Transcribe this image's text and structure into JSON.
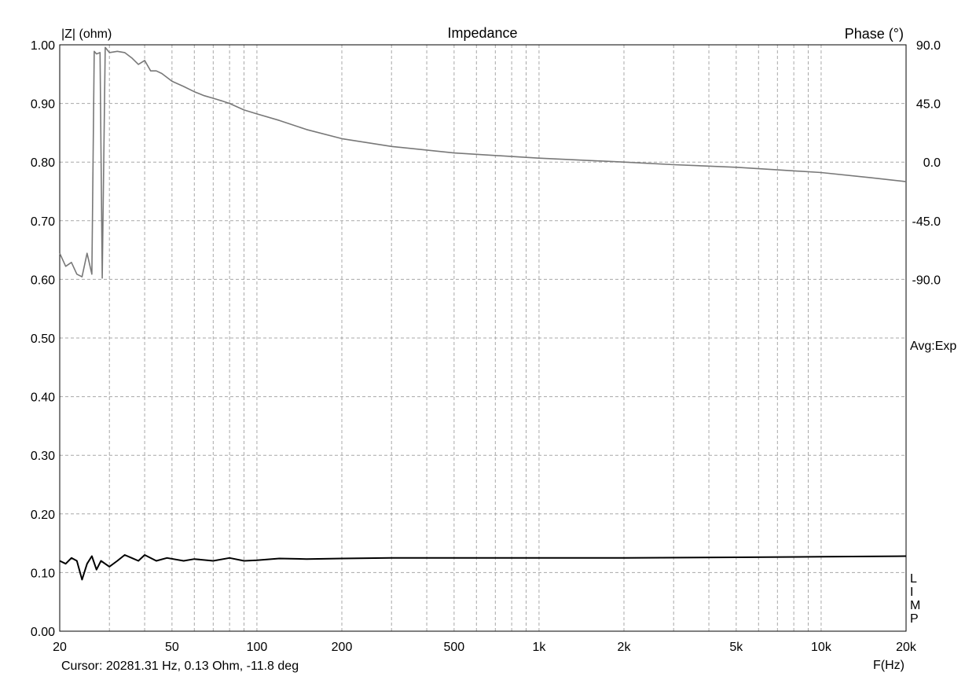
{
  "chart_data": {
    "type": "line",
    "title": "Impedance",
    "ylabel": "|Z| (ohm)",
    "y2label": "Phase (°)",
    "xlabel": "F(Hz)",
    "xscale": "log",
    "xlim": [
      20,
      20000
    ],
    "ylim": [
      0,
      1
    ],
    "y2lim": [
      -90,
      90
    ],
    "grid": true,
    "x_ticks": [
      {
        "value": 20,
        "label": "20"
      },
      {
        "value": 50,
        "label": "50"
      },
      {
        "value": 100,
        "label": "100"
      },
      {
        "value": 200,
        "label": "200"
      },
      {
        "value": 500,
        "label": "500"
      },
      {
        "value": 1000,
        "label": "1k"
      },
      {
        "value": 2000,
        "label": "2k"
      },
      {
        "value": 5000,
        "label": "5k"
      },
      {
        "value": 10000,
        "label": "10k"
      },
      {
        "value": 20000,
        "label": "20k"
      }
    ],
    "y_ticks": [
      {
        "value": 0.0,
        "label": "0.00"
      },
      {
        "value": 0.1,
        "label": "0.10"
      },
      {
        "value": 0.2,
        "label": "0.20"
      },
      {
        "value": 0.3,
        "label": "0.30"
      },
      {
        "value": 0.4,
        "label": "0.40"
      },
      {
        "value": 0.5,
        "label": "0.50"
      },
      {
        "value": 0.6,
        "label": "0.60"
      },
      {
        "value": 0.7,
        "label": "0.70"
      },
      {
        "value": 0.8,
        "label": "0.80"
      },
      {
        "value": 0.9,
        "label": "0.90"
      },
      {
        "value": 1.0,
        "label": "1.00"
      }
    ],
    "y2_ticks": [
      {
        "value": 90,
        "label": "90.0"
      },
      {
        "value": 45,
        "label": "45.0"
      },
      {
        "value": 0,
        "label": "0.0"
      },
      {
        "value": -45,
        "label": "-45.0"
      },
      {
        "value": -90,
        "label": "-90.0"
      }
    ],
    "series": [
      {
        "axis": "right",
        "color": "#787878",
        "x": [
          20,
          21,
          22,
          23,
          24,
          25,
          26,
          26.5,
          27,
          27.8,
          28.3,
          29,
          30,
          32,
          34,
          36,
          38,
          40,
          42,
          44,
          46,
          50,
          55,
          60,
          65,
          70,
          75,
          80,
          90,
          100,
          120,
          150,
          200,
          300,
          500,
          1000,
          2000,
          3000,
          5000,
          7000,
          10000,
          15000,
          20000
        ],
        "y": [
          -70,
          -80,
          -77,
          -86,
          -88,
          -70,
          -86,
          85,
          83,
          84,
          -89,
          88,
          84,
          85,
          84,
          80,
          75,
          78,
          70,
          70,
          68,
          62,
          58,
          54,
          51,
          49,
          47,
          45,
          40,
          37,
          32,
          25,
          18,
          12,
          7,
          3,
          0,
          -2,
          -4,
          -6,
          -8,
          -12,
          -15
        ]
      },
      {
        "axis": "left",
        "color": "#000000",
        "x": [
          20,
          21,
          22,
          23,
          24,
          25,
          26,
          27,
          28,
          30,
          32,
          34,
          36,
          38,
          40,
          44,
          48,
          55,
          60,
          70,
          80,
          90,
          100,
          120,
          150,
          200,
          300,
          500,
          1000,
          2000,
          5000,
          10000,
          20000
        ],
        "y": [
          0.12,
          0.115,
          0.125,
          0.12,
          0.088,
          0.115,
          0.128,
          0.105,
          0.12,
          0.11,
          0.12,
          0.13,
          0.125,
          0.12,
          0.13,
          0.12,
          0.125,
          0.12,
          0.123,
          0.12,
          0.125,
          0.12,
          0.121,
          0.124,
          0.123,
          0.124,
          0.125,
          0.125,
          0.125,
          0.125,
          0.126,
          0.127,
          0.128
        ]
      }
    ],
    "annotations": {
      "avg": "Avg:Exp",
      "limp": [
        "L",
        "I",
        "M",
        "P"
      ],
      "cursor": "Cursor: 20281.31 Hz, 0.13 Ohm, -11.8 deg"
    }
  }
}
